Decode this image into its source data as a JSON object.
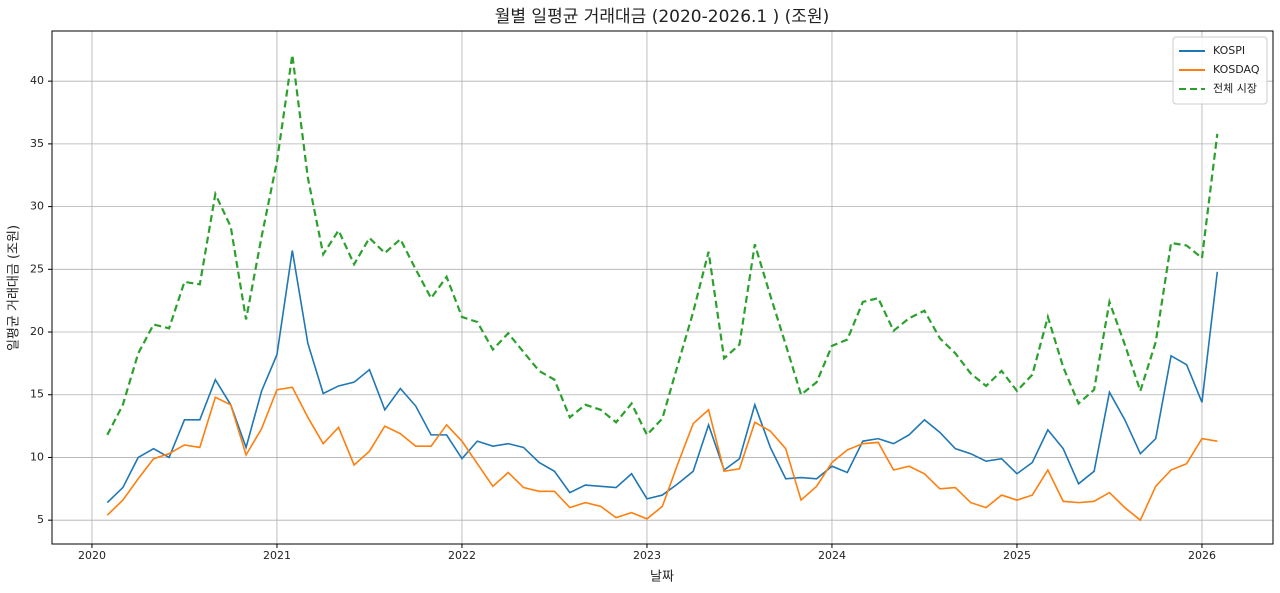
{
  "chart_data": {
    "type": "line",
    "title": "월별 일평균 거래대금 (2020-2026.1 ) (조원)",
    "xlabel": "날짜",
    "ylabel": "일평균 거래대금 (조원)",
    "x": [
      2020.083,
      2020.167,
      2020.25,
      2020.333,
      2020.417,
      2020.5,
      2020.583,
      2020.667,
      2020.75,
      2020.833,
      2020.917,
      2021.0,
      2021.083,
      2021.167,
      2021.25,
      2021.333,
      2021.417,
      2021.5,
      2021.583,
      2021.667,
      2021.75,
      2021.833,
      2021.917,
      2022.0,
      2022.083,
      2022.167,
      2022.25,
      2022.333,
      2022.417,
      2022.5,
      2022.583,
      2022.667,
      2022.75,
      2022.833,
      2022.917,
      2023.0,
      2023.083,
      2023.167,
      2023.25,
      2023.333,
      2023.417,
      2023.5,
      2023.583,
      2023.667,
      2023.75,
      2023.833,
      2023.917,
      2024.0,
      2024.083,
      2024.167,
      2024.25,
      2024.333,
      2024.417,
      2024.5,
      2024.583,
      2024.667,
      2024.75,
      2024.833,
      2024.917,
      2025.0,
      2025.083,
      2025.167,
      2025.25,
      2025.333,
      2025.417,
      2025.5,
      2025.583,
      2025.667,
      2025.75,
      2025.833,
      2025.917,
      2026.0,
      2026.083
    ],
    "series": [
      {
        "name": "KOSPI",
        "color": "#1f77b4",
        "linestyle": "solid",
        "values": [
          6.4,
          7.6,
          10.0,
          10.7,
          10.0,
          13.0,
          13.0,
          16.2,
          14.2,
          10.8,
          15.3,
          18.2,
          26.5,
          19.1,
          15.1,
          15.7,
          16.0,
          17.0,
          13.8,
          15.5,
          14.1,
          11.8,
          11.8,
          9.9,
          11.3,
          10.9,
          11.1,
          10.8,
          9.6,
          8.9,
          7.2,
          7.8,
          7.7,
          7.6,
          8.7,
          6.7,
          7.0,
          7.9,
          8.9,
          12.6,
          9.0,
          9.9,
          14.2,
          10.8,
          8.3,
          8.4,
          8.3,
          9.3,
          8.8,
          11.3,
          11.5,
          11.1,
          11.8,
          13.0,
          12.0,
          10.7,
          10.3,
          9.7,
          9.9,
          8.7,
          9.6,
          12.2,
          10.7,
          7.9,
          8.9,
          15.2,
          13.0,
          10.3,
          11.5,
          18.1,
          17.4,
          14.4,
          24.8
        ]
      },
      {
        "name": "KOSDAQ",
        "color": "#ff7f0e",
        "linestyle": "solid",
        "values": [
          5.4,
          6.6,
          8.3,
          9.9,
          10.3,
          11.0,
          10.8,
          14.8,
          14.2,
          10.2,
          12.3,
          15.4,
          15.6,
          13.2,
          11.1,
          12.4,
          9.4,
          10.5,
          12.5,
          11.9,
          10.9,
          10.9,
          12.6,
          11.3,
          9.5,
          7.7,
          8.8,
          7.6,
          7.3,
          7.3,
          6.0,
          6.4,
          6.1,
          5.2,
          5.6,
          5.1,
          6.1,
          9.5,
          12.7,
          13.8,
          8.9,
          9.1,
          12.8,
          12.1,
          10.7,
          6.6,
          7.7,
          9.6,
          10.6,
          11.1,
          11.2,
          9.0,
          9.3,
          8.7,
          7.5,
          7.6,
          6.4,
          6.0,
          7.0,
          6.6,
          7.0,
          9.0,
          6.5,
          6.4,
          6.5,
          7.2,
          6.0,
          5.0,
          7.7,
          9.0,
          9.5,
          11.5,
          11.3
        ]
      },
      {
        "name": "전체 시장",
        "color": "#2ca02c",
        "linestyle": "dashed",
        "values": [
          11.8,
          14.2,
          18.3,
          20.6,
          20.3,
          24.0,
          23.8,
          31.0,
          28.4,
          21.0,
          27.6,
          33.6,
          42.1,
          32.3,
          26.2,
          28.1,
          25.4,
          27.5,
          26.3,
          27.4,
          25.0,
          22.7,
          24.4,
          21.2,
          20.8,
          18.6,
          19.9,
          18.4,
          16.9,
          16.2,
          13.2,
          14.2,
          13.8,
          12.8,
          14.3,
          11.8,
          13.1,
          17.4,
          21.6,
          26.4,
          17.9,
          19.0,
          27.0,
          22.9,
          19.0,
          15.0,
          16.0,
          18.9,
          19.4,
          22.4,
          22.7,
          20.1,
          21.1,
          21.7,
          19.5,
          18.3,
          16.7,
          15.7,
          16.9,
          15.3,
          16.6,
          21.2,
          17.2,
          14.3,
          15.4,
          22.4,
          19.0,
          15.3,
          19.2,
          27.1,
          26.9,
          25.9,
          35.8
        ]
      }
    ],
    "xlim": [
      2019.784,
      2026.384
    ],
    "xticks": [
      2020,
      2021,
      2022,
      2023,
      2024,
      2025,
      2026
    ],
    "ylim": [
      3.1,
      44.0
    ],
    "yticks": [
      5,
      10,
      15,
      20,
      25,
      30,
      35,
      40
    ],
    "grid": true,
    "legend": "upper right"
  }
}
